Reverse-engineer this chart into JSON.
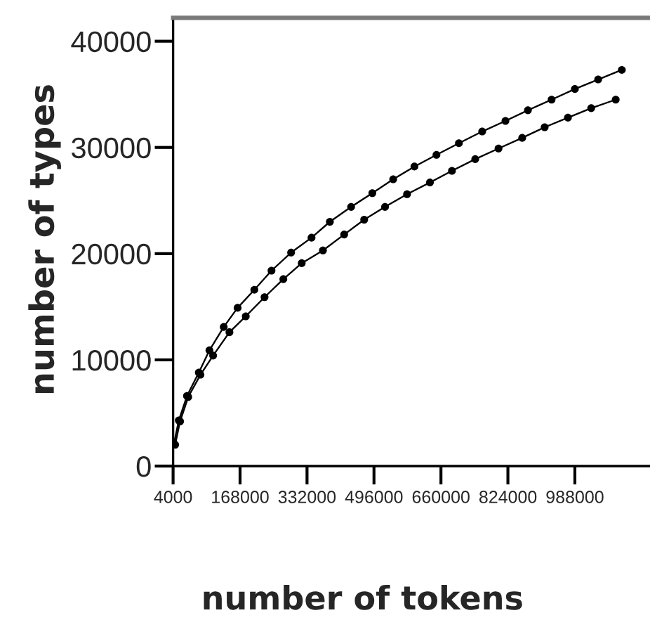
{
  "chart_data": {
    "type": "line",
    "xlabel": "number of tokens",
    "ylabel": "number of types",
    "xlim": [
      4000,
      1172000
    ],
    "ylim": [
      0,
      42200
    ],
    "xticks": [
      4000,
      168000,
      332000,
      496000,
      660000,
      824000,
      988000
    ],
    "yticks": [
      0,
      10000,
      20000,
      30000,
      40000
    ],
    "marker": "circle",
    "line_style": "solid",
    "series": [
      {
        "color": "#000000",
        "x": [
          6000,
          18000,
          38000,
          67000,
          93000,
          128000,
          162000,
          203000,
          245000,
          293000,
          343000,
          388000,
          440000,
          492000,
          543000,
          595000,
          649000,
          704000,
          761000,
          818000,
          873000,
          931000,
          988000,
          1045000,
          1103000
        ],
        "values": [
          2100,
          4300,
          6600,
          8800,
          10900,
          13100,
          14900,
          16600,
          18400,
          20100,
          21500,
          23000,
          24400,
          25700,
          27000,
          28200,
          29300,
          30400,
          31500,
          32500,
          33500,
          34500,
          35500,
          36400,
          37300
        ]
      },
      {
        "color": "#000000",
        "x": [
          9000,
          21000,
          41000,
          71000,
          102000,
          142000,
          182000,
          228000,
          274000,
          319000,
          371000,
          423000,
          472000,
          523000,
          577000,
          633000,
          687000,
          744000,
          801000,
          859000,
          914000,
          971000,
          1028000,
          1088000
        ],
        "values": [
          2000,
          4200,
          6500,
          8600,
          10400,
          12600,
          14100,
          15900,
          17600,
          19100,
          20300,
          21800,
          23200,
          24400,
          25600,
          26700,
          27800,
          28900,
          29900,
          30900,
          31900,
          32800,
          33700,
          34500
        ]
      }
    ]
  }
}
